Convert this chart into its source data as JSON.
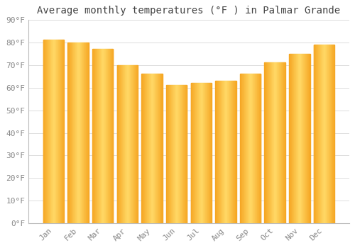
{
  "title": "Average monthly temperatures (°F ) in Palmar Grande",
  "months": [
    "Jan",
    "Feb",
    "Mar",
    "Apr",
    "May",
    "Jun",
    "Jul",
    "Aug",
    "Sep",
    "Oct",
    "Nov",
    "Dec"
  ],
  "values": [
    81,
    80,
    77,
    70,
    66,
    61,
    62,
    63,
    66,
    71,
    75,
    79
  ],
  "bar_color_edge": "#F5A623",
  "bar_color_center": "#FFD966",
  "background_color": "#FFFFFF",
  "plot_bg_color": "#FFFFFF",
  "grid_color": "#DDDDDD",
  "ylim": [
    0,
    90
  ],
  "yticks": [
    0,
    10,
    20,
    30,
    40,
    50,
    60,
    70,
    80,
    90
  ],
  "ytick_labels": [
    "0°F",
    "10°F",
    "20°F",
    "30°F",
    "40°F",
    "50°F",
    "60°F",
    "70°F",
    "80°F",
    "90°F"
  ],
  "title_fontsize": 10,
  "tick_fontsize": 8,
  "font_family": "monospace",
  "bar_width": 0.85
}
